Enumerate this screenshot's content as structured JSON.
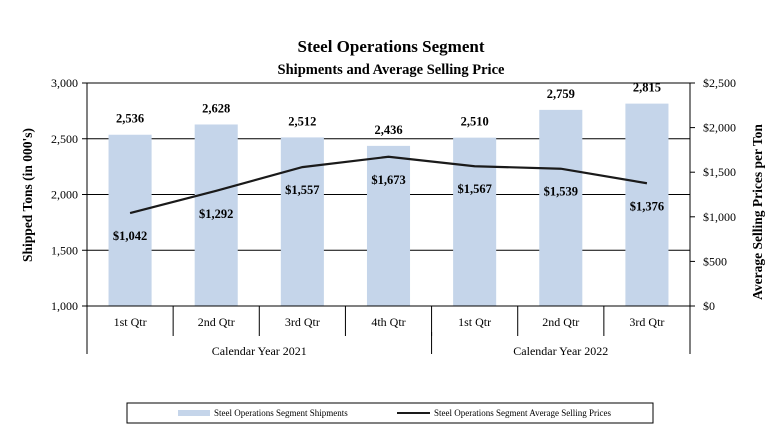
{
  "chart_data": {
    "type": "bar",
    "title": "Steel Operations Segment",
    "subtitle": "Shipments and Average Selling Price",
    "ylabel": "Shipped Tons (in 000's)",
    "y2label": "Average Selling Prices per Ton",
    "ylim": [
      1000,
      3000
    ],
    "y2lim": [
      0,
      2500
    ],
    "yticks": [
      "1,000",
      "1,500",
      "2,000",
      "2,500",
      "3,000"
    ],
    "y2ticks": [
      "$0",
      "$500",
      "$1,000",
      "$1,500",
      "$2,000",
      "$2,500"
    ],
    "categories": [
      "1st Qtr",
      "2nd Qtr",
      "3rd Qtr",
      "4th Qtr",
      "1st Qtr",
      "2nd Qtr",
      "3rd Qtr"
    ],
    "groups": [
      {
        "label": "Calendar Year 2021",
        "count": 4
      },
      {
        "label": "Calendar Year 2022",
        "count": 3
      }
    ],
    "series": [
      {
        "name": "Steel Operations Segment Shipments",
        "type": "bar",
        "axis": "left",
        "color": "#c5d5ea",
        "values": [
          2536,
          2628,
          2512,
          2436,
          2510,
          2759,
          2815
        ],
        "labels": [
          "2,536",
          "2,628",
          "2,512",
          "2,436",
          "2,510",
          "2,759",
          "2,815"
        ]
      },
      {
        "name": "Steel Operations Segment Average Selling Prices",
        "type": "line",
        "axis": "right",
        "color": "#1a1a1a",
        "values": [
          1042,
          1292,
          1557,
          1673,
          1567,
          1539,
          1376
        ],
        "labels": [
          "$1,042",
          "$1,292",
          "$1,557",
          "$1,673",
          "$1,567",
          "$1,539",
          "$1,376"
        ]
      }
    ],
    "grid": true,
    "legend": "bottom"
  }
}
